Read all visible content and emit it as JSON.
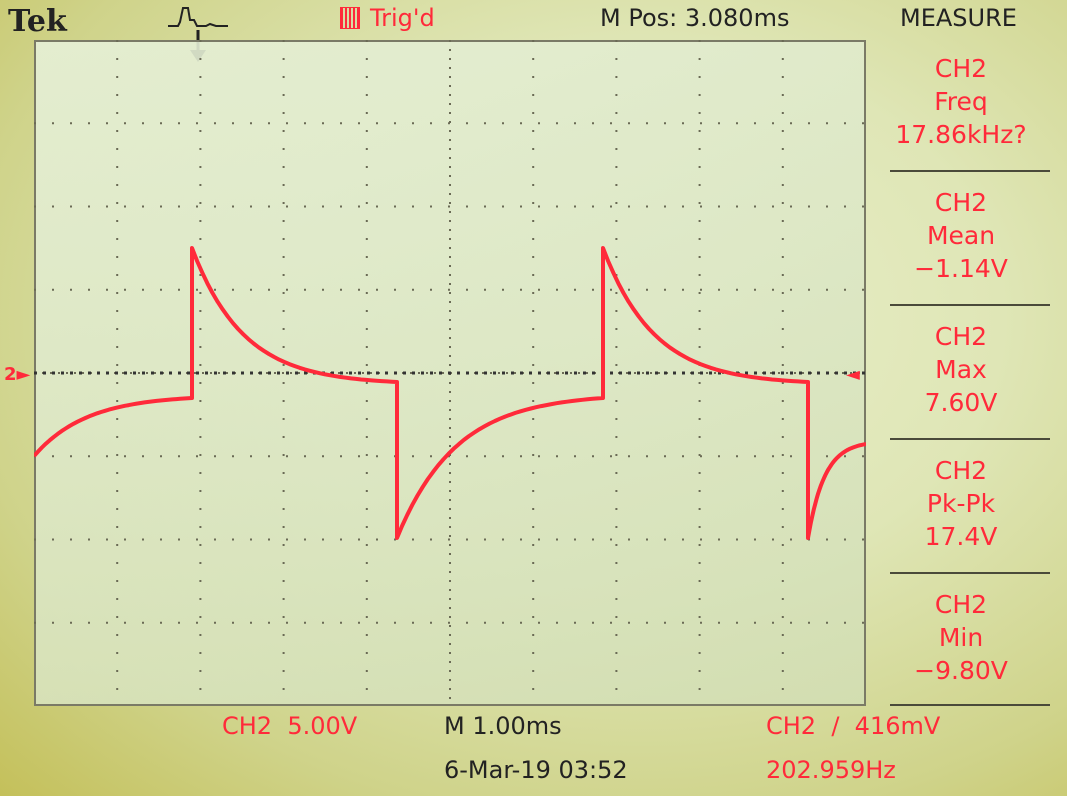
{
  "header": {
    "brand": "Tek",
    "trigger_icon": "trigger-position-icon",
    "trigger_status": "Trig'd",
    "m_pos": "M Pos: 3.080ms",
    "menu_title": "MEASURE"
  },
  "markers": {
    "channel_ground": "2",
    "trigger_level": "◄"
  },
  "measurements": [
    {
      "channel": "CH2",
      "label": "Freq",
      "value": "17.86kHz?"
    },
    {
      "channel": "CH2",
      "label": "Mean",
      "value": "−1.14V"
    },
    {
      "channel": "CH2",
      "label": "Max",
      "value": "7.60V"
    },
    {
      "channel": "CH2",
      "label": "Pk-Pk",
      "value": "17.4V"
    },
    {
      "channel": "CH2",
      "label": "Min",
      "value": "−9.80V"
    }
  ],
  "footer": {
    "ch_scale": "CH2  5.00V",
    "timebase": "M 1.00ms",
    "datetime": "6-Mar-19 03:52",
    "trigger": "CH2  ∕  416mV",
    "trigger_freq": "202.959Hz"
  },
  "colors": {
    "trace": "#ff2a3a",
    "text_dark": "#222222",
    "grid": "#6a6a55"
  }
}
